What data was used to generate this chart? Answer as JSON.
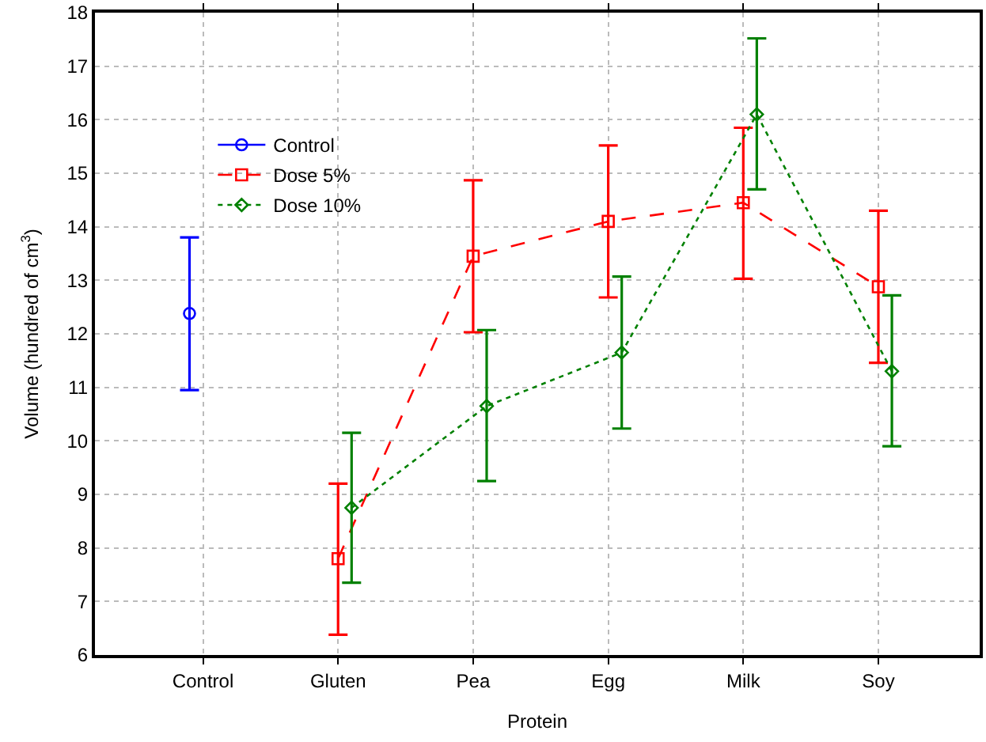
{
  "chart_data": {
    "type": "line",
    "xlabel": "Protein",
    "ylabel": "Volume (hundred of cm$^{3}$)",
    "categories": [
      "Control",
      "Gluten",
      "Pea",
      "Egg",
      "Milk",
      "Soy"
    ],
    "series": [
      {
        "name": "Control",
        "color": "#0000ff",
        "marker": "circle",
        "line_style": "solid",
        "values": [
          12.38,
          null,
          null,
          null,
          null,
          null
        ],
        "errors": [
          [
            10.95,
            13.8
          ],
          null,
          null,
          null,
          null,
          null
        ]
      },
      {
        "name": "Dose 5%",
        "color": "#ff0000",
        "marker": "square",
        "line_style": "dashed",
        "values": [
          null,
          7.8,
          13.45,
          14.1,
          14.45,
          12.88
        ],
        "errors": [
          null,
          [
            6.38,
            9.2
          ],
          [
            12.03,
            14.87
          ],
          [
            12.68,
            15.52
          ],
          [
            13.03,
            15.85
          ],
          [
            11.46,
            14.3
          ]
        ]
      },
      {
        "name": "Dose 10%",
        "color": "#008000",
        "marker": "diamond",
        "line_style": "dotted",
        "values": [
          null,
          8.75,
          10.65,
          11.65,
          16.1,
          11.3
        ],
        "errors": [
          null,
          [
            7.35,
            10.15
          ],
          [
            9.25,
            12.07
          ],
          [
            10.23,
            13.07
          ],
          [
            14.7,
            17.52
          ],
          [
            9.9,
            12.72
          ]
        ]
      }
    ],
    "ylim": [
      6,
      18
    ],
    "yticks": [
      6,
      7,
      8,
      9,
      10,
      11,
      12,
      13,
      14,
      15,
      16,
      17,
      18
    ],
    "grid": true,
    "legend": "top left"
  }
}
